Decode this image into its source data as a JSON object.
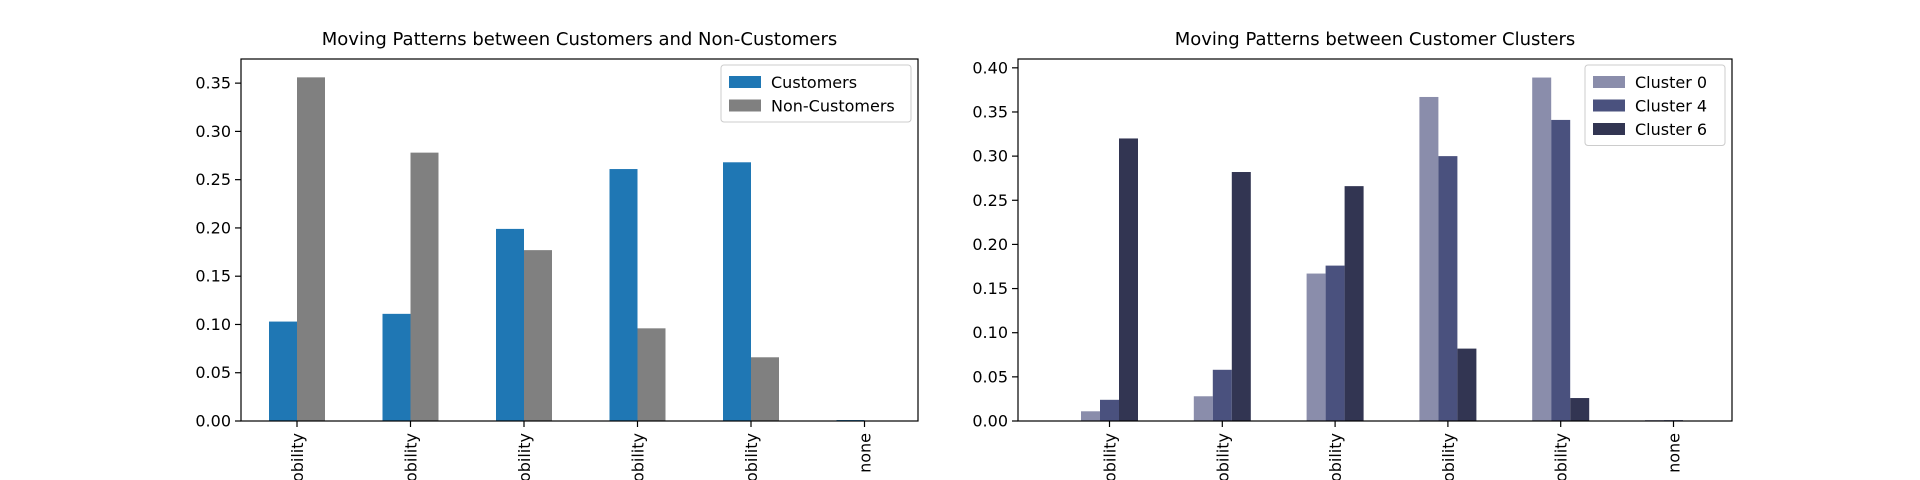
{
  "chart_data": [
    {
      "type": "bar",
      "title": "Moving Patterns between Customers and Non-Customers",
      "categories": [
        "obility",
        "obility",
        "obility",
        "obility",
        "obility",
        "none"
      ],
      "series": [
        {
          "name": "Customers",
          "color": "#1f77b4",
          "values": [
            0.103,
            0.111,
            0.199,
            0.261,
            0.268,
            0.001
          ]
        },
        {
          "name": "Non-Customers",
          "color": "#808080",
          "values": [
            0.356,
            0.278,
            0.177,
            0.096,
            0.066,
            0.0
          ]
        }
      ],
      "ylim": [
        0,
        0.375
      ],
      "yticks": [
        "0.00",
        "0.05",
        "0.10",
        "0.15",
        "0.20",
        "0.25",
        "0.30",
        "0.35"
      ],
      "legend": "top-right",
      "grid": false
    },
    {
      "type": "bar",
      "title": "Moving Patterns between Customer Clusters",
      "categories": [
        "obility",
        "obility",
        "obility",
        "obility",
        "obility",
        "none"
      ],
      "series": [
        {
          "name": "Cluster 0",
          "color": "#8a8dab",
          "values": [
            0.011,
            0.028,
            0.167,
            0.367,
            0.389,
            0.001
          ]
        },
        {
          "name": "Cluster 4",
          "color": "#4a517e",
          "values": [
            0.024,
            0.058,
            0.176,
            0.3,
            0.341,
            0.001
          ]
        },
        {
          "name": "Cluster 6",
          "color": "#323552",
          "values": [
            0.32,
            0.282,
            0.266,
            0.082,
            0.026,
            0.0
          ]
        }
      ],
      "ylim": [
        0,
        0.41
      ],
      "yticks": [
        "0.00",
        "0.05",
        "0.10",
        "0.15",
        "0.20",
        "0.25",
        "0.30",
        "0.35",
        "0.40"
      ],
      "legend": "top-right",
      "grid": false
    }
  ]
}
